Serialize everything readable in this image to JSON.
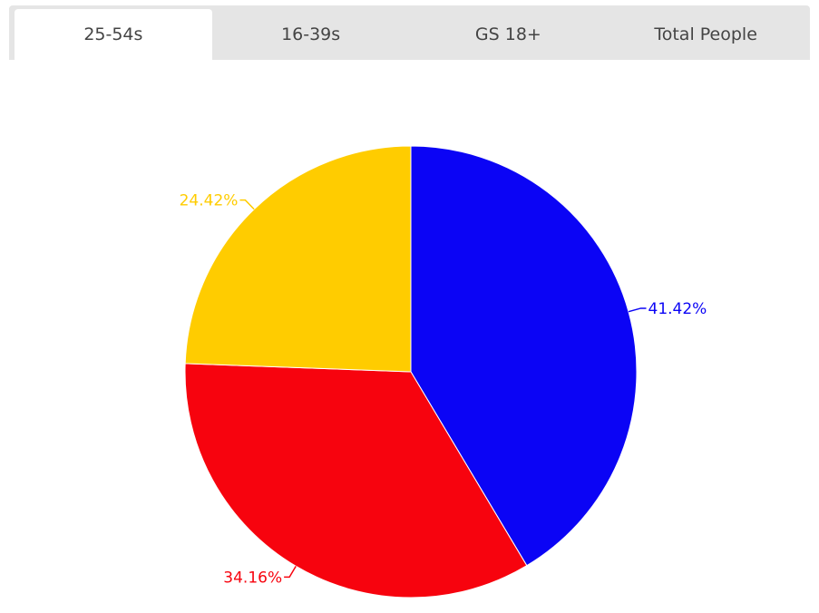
{
  "tabs": [
    {
      "label": "25-54s",
      "active": true
    },
    {
      "label": "16-39s"
    },
    {
      "label": "GS 18+"
    },
    {
      "label": "Total People"
    }
  ],
  "chart_data": {
    "type": "pie",
    "start": "top",
    "direction": "clockwise",
    "slices": [
      {
        "value": 41.42,
        "label": "41.42%",
        "color": "#0b04f5"
      },
      {
        "value": 34.16,
        "label": "34.16%",
        "color": "#f7030e"
      },
      {
        "value": 24.42,
        "label": "24.42%",
        "color": "#ffcc00"
      }
    ]
  }
}
